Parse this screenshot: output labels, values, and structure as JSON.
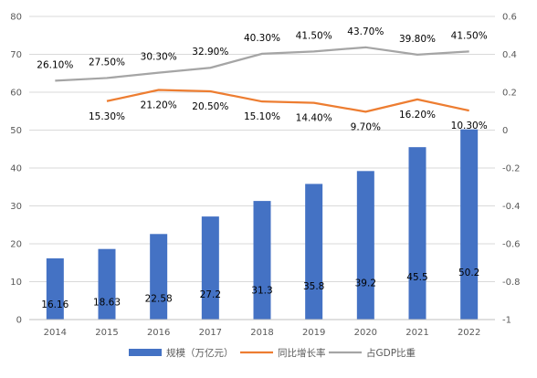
{
  "chart_data": {
    "type": "bar",
    "categories": [
      "2014",
      "2015",
      "2016",
      "2017",
      "2018",
      "2019",
      "2020",
      "2021",
      "2022"
    ],
    "series": [
      {
        "name": "规模（万亿元）",
        "type": "bar",
        "axis": "left",
        "values": [
          16.16,
          18.63,
          22.58,
          27.2,
          31.3,
          35.8,
          39.2,
          45.5,
          50.2
        ],
        "labels": [
          "16.16",
          "18.63",
          "22.58",
          "27.2",
          "31.3",
          "35.8",
          "39.2",
          "45.5",
          "50.2"
        ],
        "color": "#4472C4"
      },
      {
        "name": "同比增长率",
        "type": "line",
        "axis": "right",
        "values": [
          null,
          0.153,
          0.212,
          0.205,
          0.151,
          0.144,
          0.097,
          0.162,
          0.103
        ],
        "labels": [
          "",
          "15.30%",
          "21.20%",
          "20.50%",
          "15.10%",
          "14.40%",
          "9.70%",
          "16.20%",
          "10.30%"
        ],
        "color": "#ED7D31"
      },
      {
        "name": "占GDP比重",
        "type": "line",
        "axis": "right",
        "values": [
          0.261,
          0.275,
          0.303,
          0.329,
          0.403,
          0.415,
          0.437,
          0.398,
          0.415
        ],
        "labels": [
          "26.10%",
          "27.50%",
          "30.30%",
          "32.90%",
          "40.30%",
          "41.50%",
          "43.70%",
          "39.80%",
          "41.50%"
        ],
        "color": "#A5A5A5"
      }
    ],
    "left_axis": {
      "min": 0,
      "max": 80,
      "ticks": [
        "0",
        "10",
        "20",
        "30",
        "40",
        "50",
        "60",
        "70",
        "80"
      ]
    },
    "right_axis": {
      "min": -1,
      "max": 0.6,
      "ticks": [
        "-1",
        "-0.8",
        "-0.6",
        "-0.4",
        "-0.2",
        "0",
        "0.2",
        "0.4",
        "0.6"
      ]
    },
    "grid": true,
    "legend": "bottom"
  }
}
